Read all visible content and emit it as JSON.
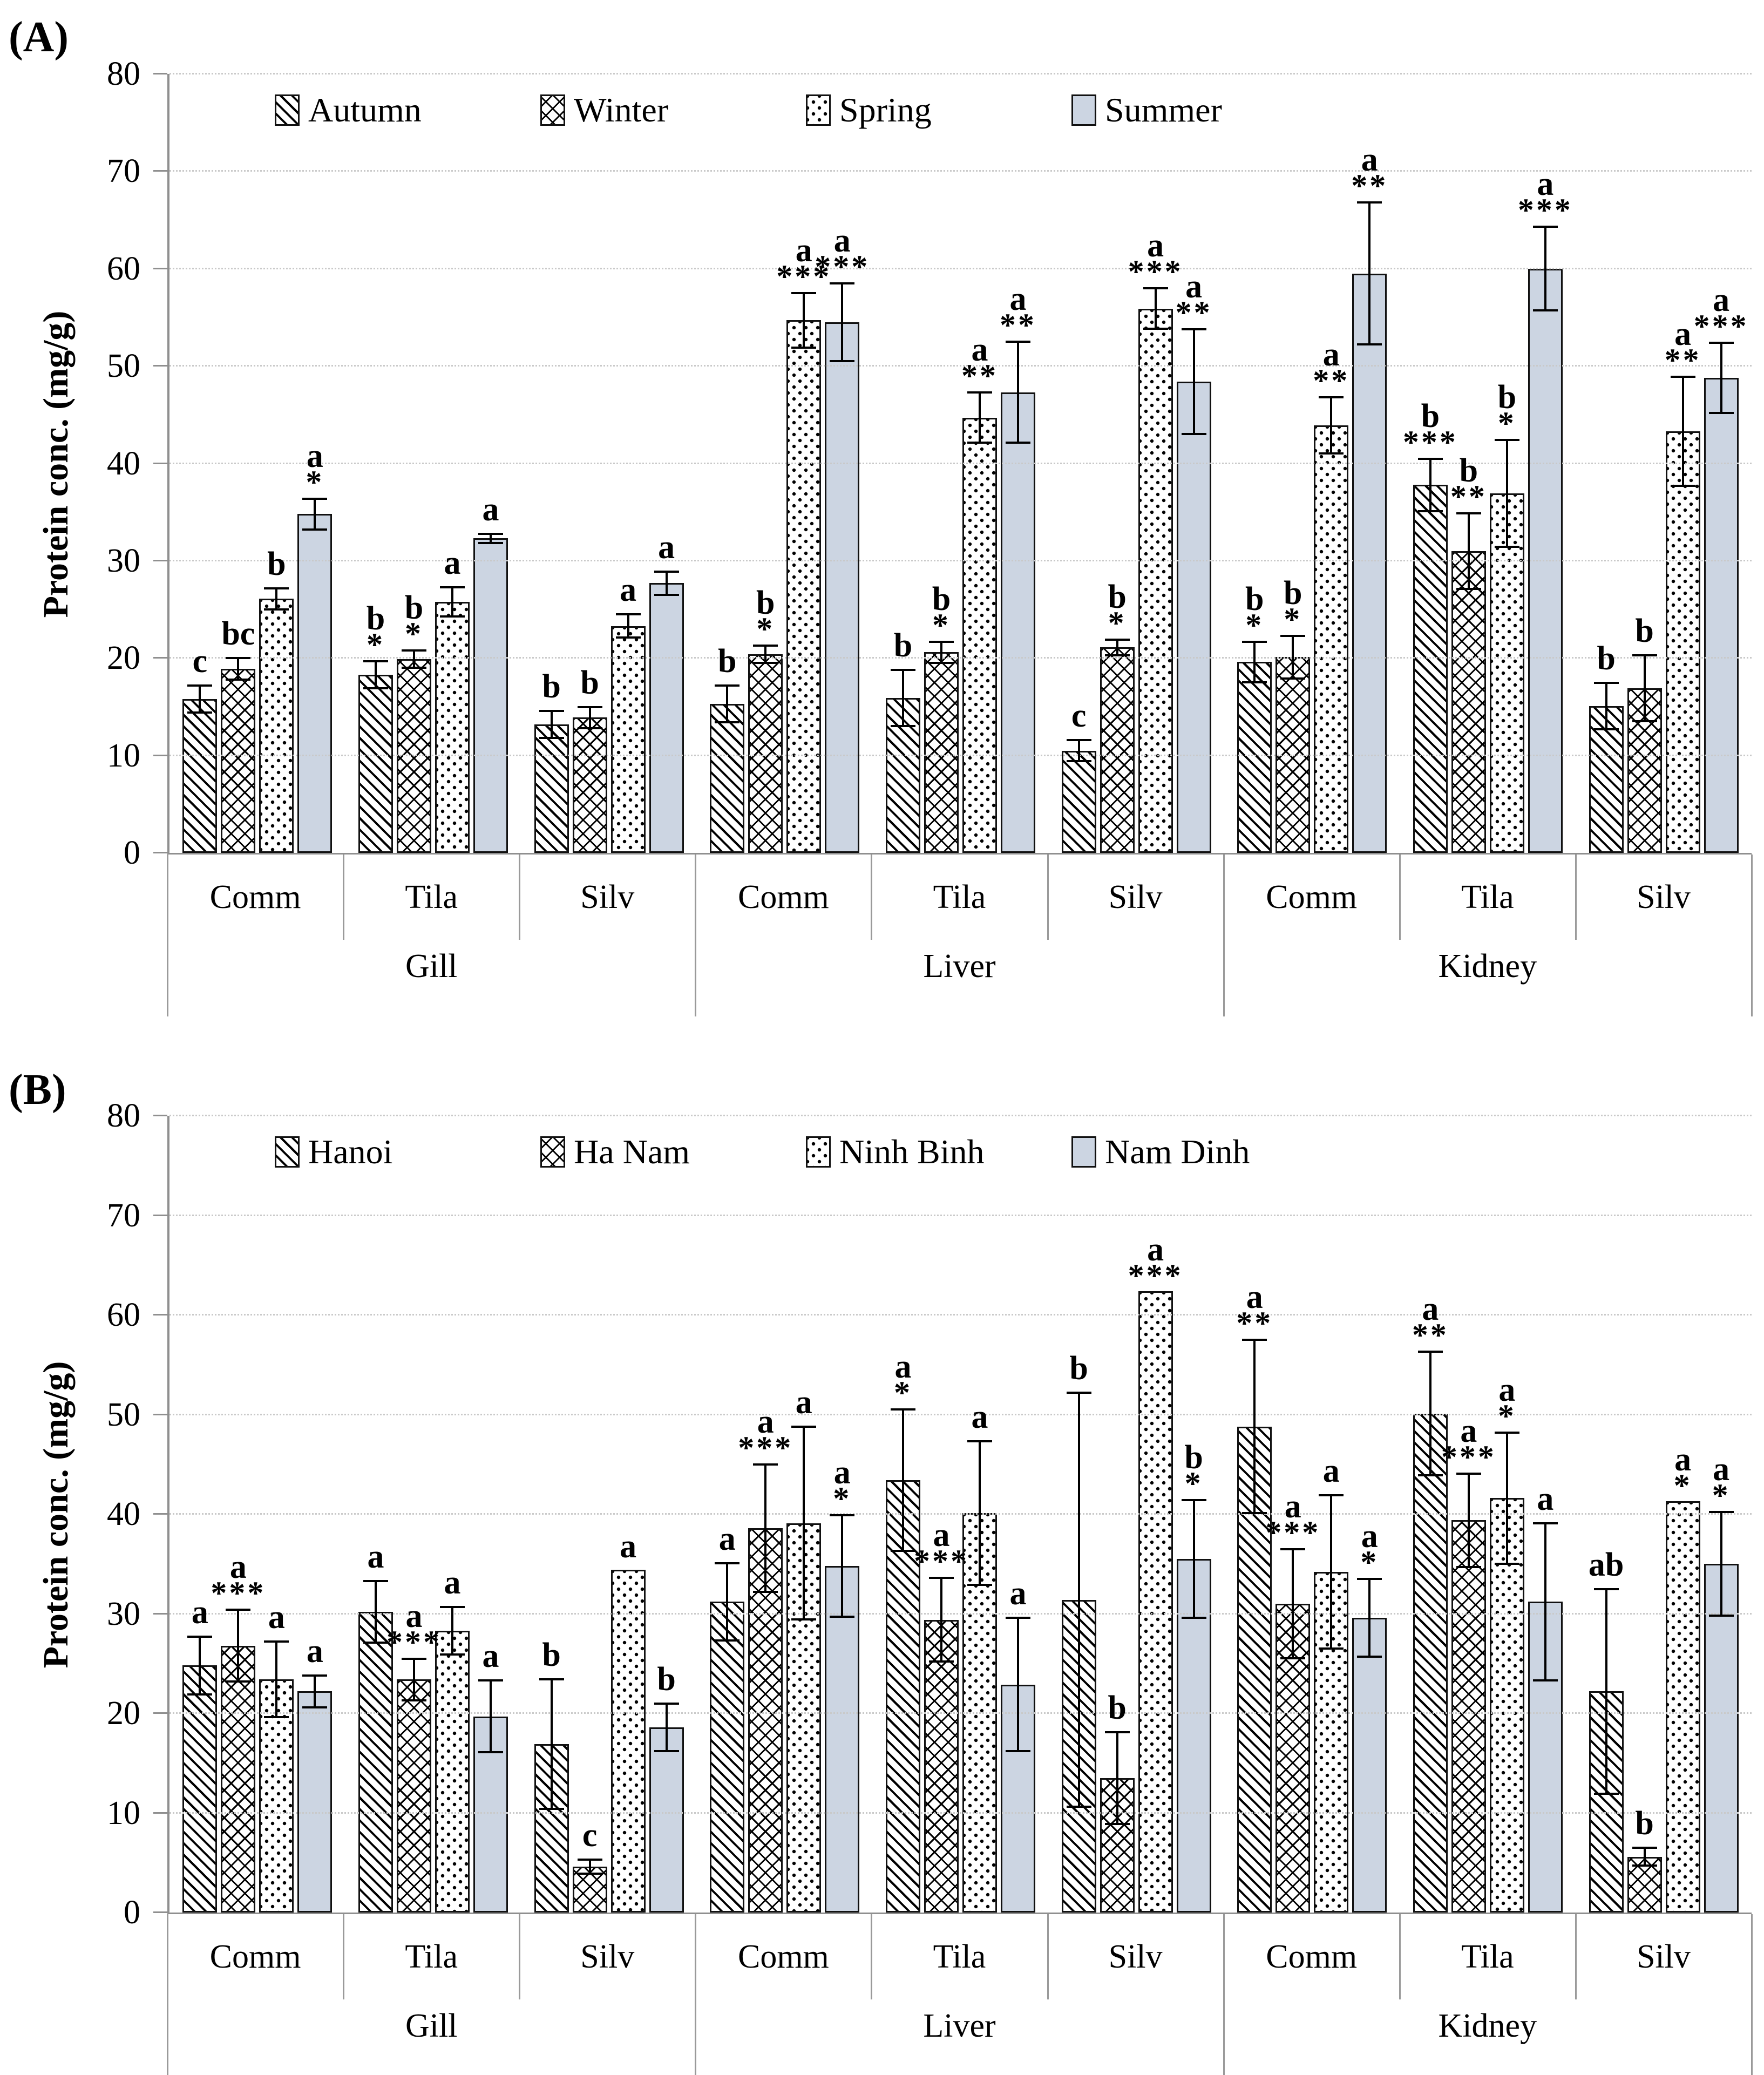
{
  "colors": {
    "summer_fill": "#ccd5e2",
    "axis_line": "#8f8f8f",
    "gridline": "#c9c9c9",
    "bar_border": "#111111"
  },
  "chart_data": [
    {
      "type": "bar",
      "panel_label": "(A)",
      "ylabel": "Protein conc. (mg/g)",
      "ylim": [
        0,
        80
      ],
      "ytick_step": 10,
      "grid": "dotted-horizontal",
      "legend_position": "top-inside",
      "legend": [
        "Autumn",
        "Winter",
        "Spring",
        "Summer"
      ],
      "group_level_1": [
        "Gill",
        "Liver",
        "Kidney"
      ],
      "group_level_2": [
        "Comm",
        "Tila",
        "Silv"
      ],
      "groups": [
        {
          "tissue": "Gill",
          "species": "Comm",
          "bars": [
            {
              "series": "Autumn",
              "value": 15.8,
              "err": 1.5,
              "sig": "c",
              "stars": ""
            },
            {
              "series": "Winter",
              "value": 18.9,
              "err": 1.2,
              "sig": "bc",
              "stars": ""
            },
            {
              "series": "Spring",
              "value": 26.1,
              "err": 1.2,
              "sig": "b",
              "stars": ""
            },
            {
              "series": "Summer",
              "value": 34.8,
              "err": 1.7,
              "sig": "a",
              "stars": "*"
            }
          ]
        },
        {
          "tissue": "Gill",
          "species": "Tila",
          "bars": [
            {
              "series": "Autumn",
              "value": 18.3,
              "err": 1.5,
              "sig": "b",
              "stars": "*"
            },
            {
              "series": "Winter",
              "value": 19.9,
              "err": 1.0,
              "sig": "b",
              "stars": "*"
            },
            {
              "series": "Spring",
              "value": 25.8,
              "err": 1.6,
              "sig": "a",
              "stars": ""
            },
            {
              "series": "Summer",
              "value": 32.3,
              "err": 0.6,
              "sig": "a",
              "stars": ""
            }
          ]
        },
        {
          "tissue": "Gill",
          "species": "Silv",
          "bars": [
            {
              "series": "Autumn",
              "value": 13.2,
              "err": 1.5,
              "sig": "b",
              "stars": ""
            },
            {
              "series": "Winter",
              "value": 13.9,
              "err": 1.2,
              "sig": "b",
              "stars": ""
            },
            {
              "series": "Spring",
              "value": 23.3,
              "err": 1.3,
              "sig": "a",
              "stars": ""
            },
            {
              "series": "Summer",
              "value": 27.7,
              "err": 1.3,
              "sig": "a",
              "stars": ""
            }
          ]
        },
        {
          "tissue": "Liver",
          "species": "Comm",
          "bars": [
            {
              "series": "Autumn",
              "value": 15.3,
              "err": 2.0,
              "sig": "b",
              "stars": ""
            },
            {
              "series": "Winter",
              "value": 20.4,
              "err": 1.0,
              "sig": "b",
              "stars": "*"
            },
            {
              "series": "Spring",
              "value": 54.7,
              "err": 2.9,
              "sig": "a",
              "stars": "***"
            },
            {
              "series": "Summer",
              "value": 54.5,
              "err": 4.1,
              "sig": "a",
              "stars": "***"
            }
          ]
        },
        {
          "tissue": "Liver",
          "species": "Tila",
          "bars": [
            {
              "series": "Autumn",
              "value": 15.9,
              "err": 3.0,
              "sig": "b",
              "stars": ""
            },
            {
              "series": "Winter",
              "value": 20.6,
              "err": 1.2,
              "sig": "b",
              "stars": "*"
            },
            {
              "series": "Spring",
              "value": 44.7,
              "err": 2.7,
              "sig": "a",
              "stars": "**"
            },
            {
              "series": "Summer",
              "value": 47.3,
              "err": 5.3,
              "sig": "a",
              "stars": "**"
            }
          ]
        },
        {
          "tissue": "Liver",
          "species": "Silv",
          "bars": [
            {
              "series": "Autumn",
              "value": 10.5,
              "err": 1.2,
              "sig": "c",
              "stars": ""
            },
            {
              "series": "Winter",
              "value": 21.1,
              "err": 0.9,
              "sig": "b",
              "stars": "*"
            },
            {
              "series": "Spring",
              "value": 55.9,
              "err": 2.2,
              "sig": "a",
              "stars": "***"
            },
            {
              "series": "Summer",
              "value": 48.4,
              "err": 5.5,
              "sig": "a",
              "stars": "**"
            }
          ]
        },
        {
          "tissue": "Kidney",
          "species": "Comm",
          "bars": [
            {
              "series": "Autumn",
              "value": 19.6,
              "err": 2.2,
              "sig": "b",
              "stars": "*"
            },
            {
              "series": "Winter",
              "value": 20.1,
              "err": 2.3,
              "sig": "b",
              "stars": "*"
            },
            {
              "series": "Spring",
              "value": 43.9,
              "err": 3.0,
              "sig": "a",
              "stars": "**"
            },
            {
              "series": "Summer",
              "value": 59.5,
              "err": 7.4,
              "sig": "a",
              "stars": "**"
            }
          ]
        },
        {
          "tissue": "Kidney",
          "species": "Tila",
          "bars": [
            {
              "series": "Autumn",
              "value": 37.8,
              "err": 2.8,
              "sig": "b",
              "stars": "***"
            },
            {
              "series": "Winter",
              "value": 31.0,
              "err": 4.0,
              "sig": "b",
              "stars": "**"
            },
            {
              "series": "Spring",
              "value": 36.9,
              "err": 5.6,
              "sig": "b",
              "stars": "*"
            },
            {
              "series": "Summer",
              "value": 60.0,
              "err": 4.4,
              "sig": "a",
              "stars": "***"
            }
          ]
        },
        {
          "tissue": "Kidney",
          "species": "Silv",
          "bars": [
            {
              "series": "Autumn",
              "value": 15.1,
              "err": 2.5,
              "sig": "b",
              "stars": ""
            },
            {
              "series": "Winter",
              "value": 16.9,
              "err": 3.5,
              "sig": "b",
              "stars": ""
            },
            {
              "series": "Spring",
              "value": 43.3,
              "err": 5.7,
              "sig": "a",
              "stars": "**"
            },
            {
              "series": "Summer",
              "value": 48.8,
              "err": 3.7,
              "sig": "a",
              "stars": "***"
            }
          ]
        }
      ]
    },
    {
      "type": "bar",
      "panel_label": "(B)",
      "ylabel": "Protein conc. (mg/g)",
      "ylim": [
        0,
        80
      ],
      "ytick_step": 10,
      "grid": "dotted-horizontal",
      "legend_position": "top-inside",
      "legend": [
        "Hanoi",
        "Ha Nam",
        "Ninh Binh",
        "Nam Dinh"
      ],
      "group_level_1": [
        "Gill",
        "Liver",
        "Kidney"
      ],
      "group_level_2": [
        "Comm",
        "Tila",
        "Silv"
      ],
      "groups": [
        {
          "tissue": "Gill",
          "species": "Comm",
          "bars": [
            {
              "series": "Hanoi",
              "value": 24.8,
              "err": 3.0,
              "sig": "a",
              "stars": ""
            },
            {
              "series": "Ha Nam",
              "value": 26.8,
              "err": 3.7,
              "sig": "a",
              "stars": "***"
            },
            {
              "series": "Ninh Binh",
              "value": 23.4,
              "err": 3.9,
              "sig": "a",
              "stars": ""
            },
            {
              "series": "Nam Dinh",
              "value": 22.2,
              "err": 1.7,
              "sig": "a",
              "stars": ""
            }
          ]
        },
        {
          "tissue": "Gill",
          "species": "Tila",
          "bars": [
            {
              "series": "Hanoi",
              "value": 30.2,
              "err": 3.2,
              "sig": "a",
              "stars": ""
            },
            {
              "series": "Ha Nam",
              "value": 23.4,
              "err": 2.2,
              "sig": "a",
              "stars": "***"
            },
            {
              "series": "Ninh Binh",
              "value": 28.3,
              "err": 2.5,
              "sig": "a",
              "stars": ""
            },
            {
              "series": "Nam Dinh",
              "value": 19.7,
              "err": 3.7,
              "sig": "a",
              "stars": ""
            }
          ]
        },
        {
          "tissue": "Gill",
          "species": "Silv",
          "bars": [
            {
              "series": "Hanoi",
              "value": 16.9,
              "err": 6.6,
              "sig": "b",
              "stars": ""
            },
            {
              "series": "Ha Nam",
              "value": 4.6,
              "err": 0.8,
              "sig": "c",
              "stars": ""
            },
            {
              "series": "Ninh Binh",
              "value": 34.4,
              "err": 0,
              "sig": "a",
              "stars": ""
            },
            {
              "series": "Nam Dinh",
              "value": 18.6,
              "err": 2.5,
              "sig": "b",
              "stars": ""
            }
          ]
        },
        {
          "tissue": "Liver",
          "species": "Comm",
          "bars": [
            {
              "series": "Hanoi",
              "value": 31.2,
              "err": 4.0,
              "sig": "a",
              "stars": ""
            },
            {
              "series": "Ha Nam",
              "value": 38.6,
              "err": 6.5,
              "sig": "a",
              "stars": "***"
            },
            {
              "series": "Ninh Binh",
              "value": 39.1,
              "err": 9.8,
              "sig": "a",
              "stars": ""
            },
            {
              "series": "Nam Dinh",
              "value": 34.8,
              "err": 5.2,
              "sig": "a",
              "stars": "*"
            }
          ]
        },
        {
          "tissue": "Liver",
          "species": "Tila",
          "bars": [
            {
              "series": "Hanoi",
              "value": 43.4,
              "err": 7.2,
              "sig": "a",
              "stars": "*"
            },
            {
              "series": "Ha Nam",
              "value": 29.4,
              "err": 4.3,
              "sig": "a",
              "stars": "***"
            },
            {
              "series": "Ninh Binh",
              "value": 40.1,
              "err": 7.3,
              "sig": "a",
              "stars": ""
            },
            {
              "series": "Nam Dinh",
              "value": 22.9,
              "err": 6.8,
              "sig": "a",
              "stars": ""
            }
          ]
        },
        {
          "tissue": "Liver",
          "species": "Silv",
          "bars": [
            {
              "series": "Hanoi",
              "value": 31.4,
              "err": 20.9,
              "sig": "b",
              "stars": ""
            },
            {
              "series": "Ha Nam",
              "value": 13.5,
              "err": 4.7,
              "sig": "b",
              "stars": ""
            },
            {
              "series": "Ninh Binh",
              "value": 62.4,
              "err": 0,
              "sig": "a",
              "stars": "***"
            },
            {
              "series": "Nam Dinh",
              "value": 35.5,
              "err": 6.0,
              "sig": "b",
              "stars": "*"
            }
          ]
        },
        {
          "tissue": "Kidney",
          "species": "Comm",
          "bars": [
            {
              "series": "Hanoi",
              "value": 48.8,
              "err": 8.8,
              "sig": "a",
              "stars": "**"
            },
            {
              "series": "Ha Nam",
              "value": 31.0,
              "err": 5.6,
              "sig": "a",
              "stars": "***"
            },
            {
              "series": "Ninh Binh",
              "value": 34.2,
              "err": 7.8,
              "sig": "a",
              "stars": ""
            },
            {
              "series": "Nam Dinh",
              "value": 29.6,
              "err": 4.0,
              "sig": "a",
              "stars": "*"
            }
          ]
        },
        {
          "tissue": "Kidney",
          "species": "Tila",
          "bars": [
            {
              "series": "Hanoi",
              "value": 50.1,
              "err": 6.3,
              "sig": "a",
              "stars": "**"
            },
            {
              "series": "Ha Nam",
              "value": 39.4,
              "err": 4.8,
              "sig": "a",
              "stars": "***"
            },
            {
              "series": "Ninh Binh",
              "value": 41.6,
              "err": 6.7,
              "sig": "a",
              "stars": "*"
            },
            {
              "series": "Nam Dinh",
              "value": 31.2,
              "err": 8.0,
              "sig": "a",
              "stars": ""
            }
          ]
        },
        {
          "tissue": "Kidney",
          "species": "Silv",
          "bars": [
            {
              "series": "Hanoi",
              "value": 22.2,
              "err": 10.4,
              "sig": "ab",
              "stars": ""
            },
            {
              "series": "Ha Nam",
              "value": 5.6,
              "err": 1.0,
              "sig": "b",
              "stars": ""
            },
            {
              "series": "Ninh Binh",
              "value": 41.3,
              "err": 0,
              "sig": "a",
              "stars": "*"
            },
            {
              "series": "Nam Dinh",
              "value": 35.0,
              "err": 5.3,
              "sig": "a",
              "stars": "*"
            }
          ]
        }
      ]
    }
  ]
}
